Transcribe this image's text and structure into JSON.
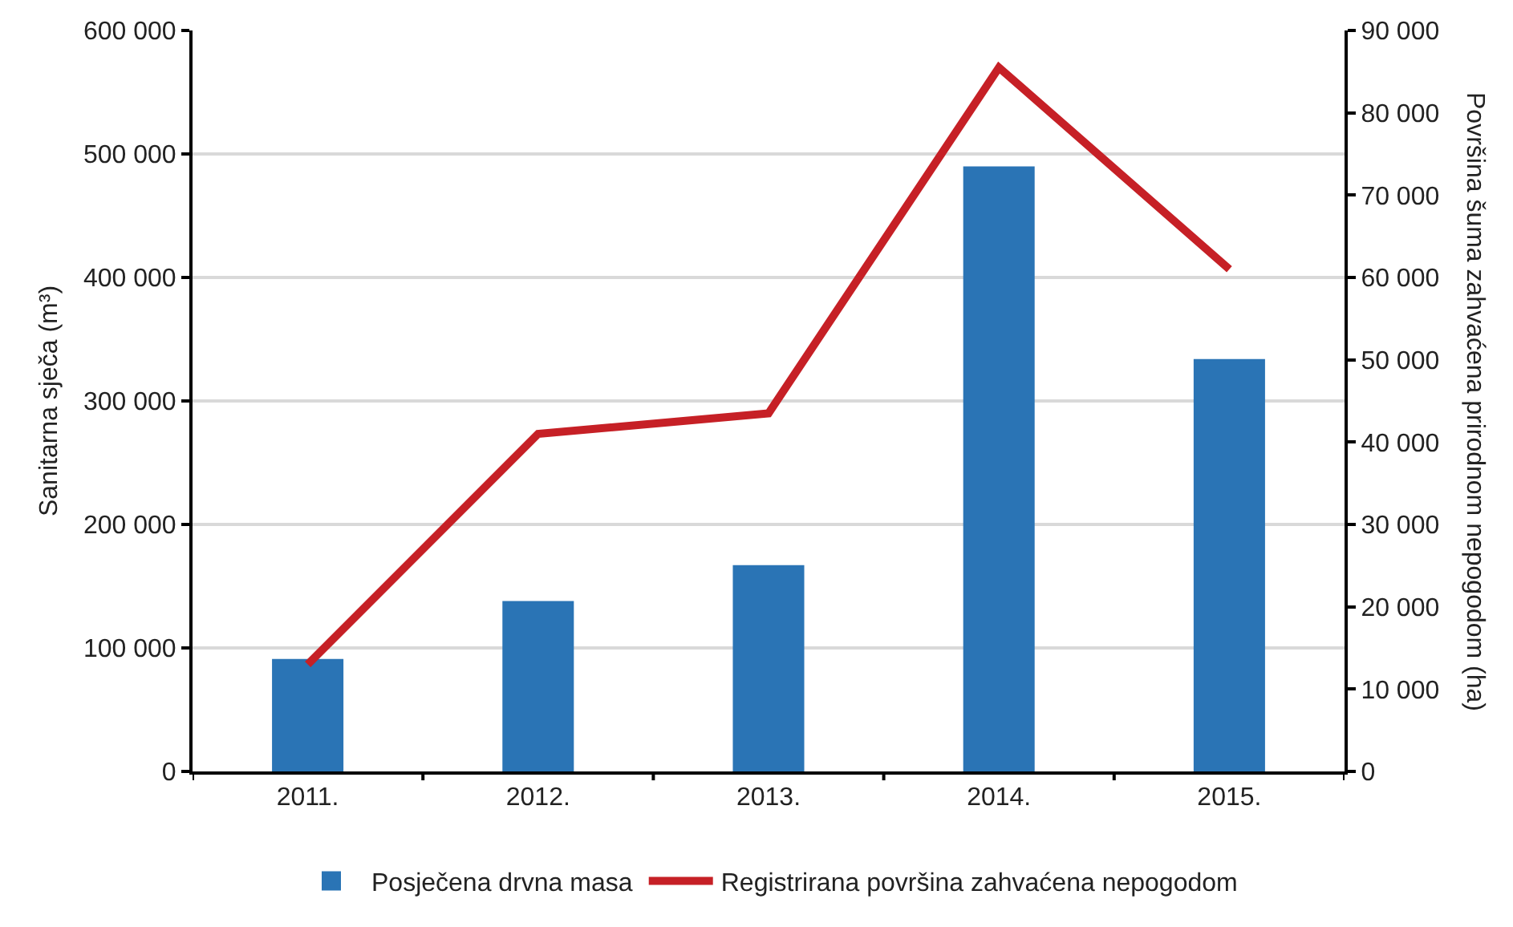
{
  "chart_data": {
    "type": "bar",
    "categories": [
      "2011.",
      "2012.",
      "2013.",
      "2014.",
      "2015."
    ],
    "ylabel": "Sanitarna sječa (m³)",
    "y2label": "Površina šuma zahvaćena prirodnom nepogodom (ha)",
    "series": [
      {
        "name": "Posječena drvna masa",
        "color": "#2a74b5",
        "values": [
          91000,
          138000,
          167000,
          490000,
          334000
        ]
      },
      {
        "name": "Registrirana površina zahvaćena nepogodom",
        "type": "line",
        "axis": "y2",
        "color": "#c62026",
        "values": [
          13000,
          41000,
          43500,
          85500,
          61000
        ]
      }
    ],
    "ylim": [
      0,
      600000
    ],
    "yticks": [
      0,
      {
        "value": 100000,
        "label": "100 000"
      },
      {
        "value": 200000,
        "label": "200 000"
      },
      {
        "value": 300000,
        "label": "300 000"
      },
      {
        "value": 400000,
        "label": "400 000"
      },
      {
        "value": 500000,
        "label": "500 000"
      },
      {
        "value": 600000,
        "label": "600 000"
      }
    ],
    "y2lim": [
      0,
      90000
    ],
    "y2ticks": [
      0,
      {
        "value": 10000,
        "label": "10 000"
      },
      {
        "value": 20000,
        "label": "20 000"
      },
      {
        "value": 30000,
        "label": "30 000"
      },
      {
        "value": 40000,
        "label": "40 000"
      },
      {
        "value": 50000,
        "label": "50 000"
      },
      {
        "value": 60000,
        "label": "60 000"
      },
      {
        "value": 70000,
        "label": "70 000"
      },
      {
        "value": 80000,
        "label": "80 000"
      },
      {
        "value": 90000,
        "label": "90 000"
      }
    ],
    "grid": "y",
    "legend": "bottom",
    "marker": "none",
    "line_style": "solid"
  }
}
